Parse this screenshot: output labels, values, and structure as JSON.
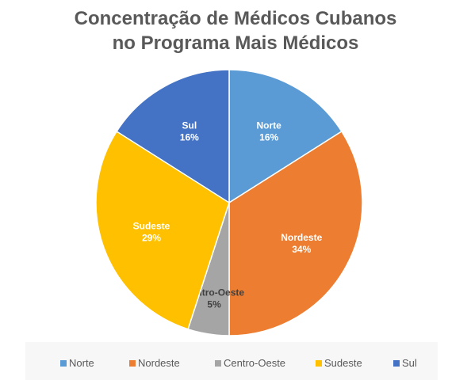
{
  "chart_data": {
    "type": "pie",
    "title": "Concentração de Médicos Cubanos no Programa Mais Médicos",
    "title_lines": [
      "Concentração de Médicos Cubanos",
      "no Programa Mais Médicos"
    ],
    "slices": [
      {
        "name": "Norte",
        "value": 16,
        "label": "16%",
        "color": "#5b9bd5"
      },
      {
        "name": "Nordeste",
        "value": 34,
        "label": "34%",
        "color": "#ed7d31"
      },
      {
        "name": "Centro-Oeste",
        "value": 5,
        "label": "5%",
        "color": "#a5a5a5"
      },
      {
        "name": "Sudeste",
        "value": 29,
        "label": "29%",
        "color": "#ffc000"
      },
      {
        "name": "Sul",
        "value": 16,
        "label": "16%",
        "color": "#4472c4"
      }
    ],
    "legend_position": "bottom"
  }
}
